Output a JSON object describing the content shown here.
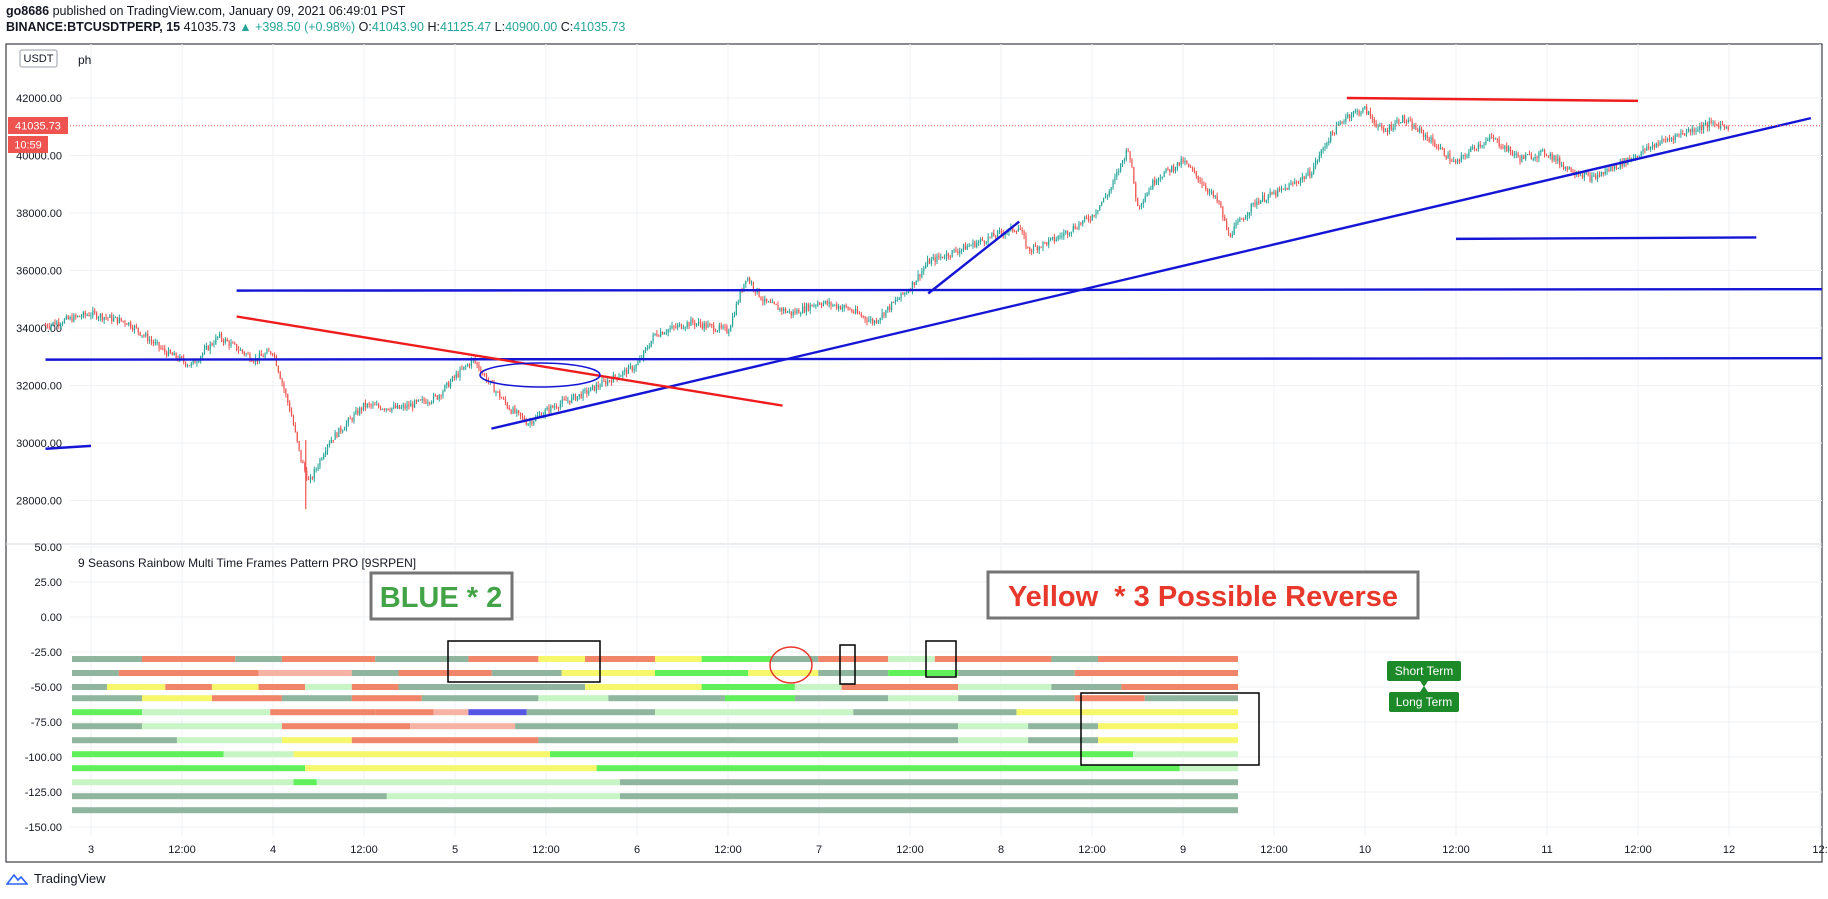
{
  "header": {
    "author": "go8686",
    "published_text": "published on TradingView.com, January 09, 2021 06:49:01 PST",
    "symbol": "BINANCE:BTCUSDTPERP, 15",
    "last": "41035.73",
    "change": "▲ +398.50 (+0.98%)",
    "o_label": "O:",
    "o_value": "41043.90",
    "h_label": "H:",
    "h_value": "41125.47",
    "l_label": "L:",
    "l_value": "40900.00",
    "c_label": "C:",
    "c_value": "41035.73"
  },
  "toolbar": {
    "currency": "USDT",
    "ph": "ph"
  },
  "price_tag": {
    "value": "41035.73",
    "countdown": "10:59"
  },
  "indicator": {
    "title": "9 Seasons Rainbow Multi Time Frames Pattern PRO [9SRPEN]"
  },
  "annotations": {
    "blue_label": "BLUE * 2",
    "yellow_label": "Yellow  * 3 Possible Reverse",
    "short_term": "Short Term",
    "long_term": "Long Term"
  },
  "colors": {
    "up": "#26a69a",
    "down": "#ef5350",
    "blue_line": "#1515d6",
    "red_line": "#ee1c1c",
    "grid": "#eef0f3",
    "axis_text": "#131722",
    "badge_green": "#1d8a2a",
    "blue_label_text": "#43a347",
    "yellow_label_text": "#e8382c"
  },
  "footer": {
    "brand": "TradingView"
  },
  "chart_data": [
    {
      "type": "candlestick",
      "title": "BINANCE:BTCUSDTPERP, 15",
      "price_axis": [
        "42000.00",
        "40000.00",
        "38000.00",
        "36000.00",
        "34000.00",
        "32000.00",
        "30000.00",
        "28000.00"
      ],
      "price_range": [
        27000,
        42700
      ],
      "time_axis": [
        "3",
        "12:00",
        "4",
        "12:00",
        "5",
        "12:00",
        "6",
        "12:00",
        "7",
        "12:00",
        "8",
        "12:00",
        "9",
        "12:00",
        "10",
        "12:00",
        "11",
        "12:00",
        "12",
        "12:"
      ],
      "close_path": [
        [
          2.75,
          34100
        ],
        [
          3.0,
          34500
        ],
        [
          3.2,
          34200
        ],
        [
          3.4,
          33200
        ],
        [
          3.55,
          32700
        ],
        [
          3.7,
          33700
        ],
        [
          3.9,
          32900
        ],
        [
          4.0,
          33200
        ],
        [
          4.1,
          31000
        ],
        [
          4.15,
          29500
        ],
        [
          4.2,
          28600
        ],
        [
          4.3,
          30000
        ],
        [
          4.5,
          31300
        ],
        [
          4.7,
          31200
        ],
        [
          4.9,
          31600
        ],
        [
          5.0,
          32300
        ],
        [
          5.1,
          32900
        ],
        [
          5.2,
          32000
        ],
        [
          5.3,
          31200
        ],
        [
          5.4,
          30700
        ],
        [
          5.55,
          31300
        ],
        [
          5.7,
          31700
        ],
        [
          5.85,
          32200
        ],
        [
          6.0,
          32700
        ],
        [
          6.1,
          33800
        ],
        [
          6.3,
          34200
        ],
        [
          6.5,
          33900
        ],
        [
          6.6,
          35800
        ],
        [
          6.7,
          34900
        ],
        [
          6.85,
          34500
        ],
        [
          7.0,
          34900
        ],
        [
          7.15,
          34700
        ],
        [
          7.3,
          34200
        ],
        [
          7.5,
          35400
        ],
        [
          7.6,
          36300
        ],
        [
          7.8,
          36800
        ],
        [
          8.0,
          37300
        ],
        [
          8.1,
          37500
        ],
        [
          8.15,
          36700
        ],
        [
          8.3,
          37100
        ],
        [
          8.5,
          37900
        ],
        [
          8.6,
          38800
        ],
        [
          8.7,
          40300
        ],
        [
          8.75,
          38200
        ],
        [
          8.85,
          39200
        ],
        [
          9.0,
          39800
        ],
        [
          9.1,
          39100
        ],
        [
          9.2,
          38300
        ],
        [
          9.25,
          37200
        ],
        [
          9.4,
          38400
        ],
        [
          9.55,
          38800
        ],
        [
          9.7,
          39400
        ],
        [
          9.8,
          40600
        ],
        [
          9.9,
          41400
        ],
        [
          10.0,
          41600
        ],
        [
          10.1,
          40800
        ],
        [
          10.2,
          41300
        ],
        [
          10.35,
          40600
        ],
        [
          10.5,
          39700
        ],
        [
          10.6,
          40300
        ],
        [
          10.7,
          40600
        ],
        [
          10.85,
          39900
        ],
        [
          11.0,
          40100
        ],
        [
          11.1,
          39600
        ],
        [
          11.25,
          39200
        ],
        [
          11.4,
          39700
        ],
        [
          11.6,
          40400
        ],
        [
          11.75,
          40800
        ],
        [
          11.9,
          41100
        ],
        [
          12.0,
          41035
        ]
      ],
      "trendlines": [
        {
          "color": "blue",
          "from": [
            3.8,
            35300
          ],
          "to": [
            12.8,
            35350
          ]
        },
        {
          "color": "blue",
          "from": [
            2.75,
            32900
          ],
          "to": [
            13.0,
            32950
          ]
        },
        {
          "color": "blue",
          "from": [
            2.75,
            29800
          ],
          "to": [
            3.0,
            29900
          ]
        },
        {
          "color": "blue",
          "from": [
            5.2,
            30500
          ],
          "to": [
            12.45,
            41300
          ]
        },
        {
          "color": "blue",
          "from": [
            7.6,
            35200
          ],
          "to": [
            8.1,
            37700
          ]
        },
        {
          "color": "blue",
          "from": [
            10.5,
            37100
          ],
          "to": [
            12.15,
            37150
          ]
        },
        {
          "color": "red",
          "from": [
            3.8,
            34400
          ],
          "to": [
            6.8,
            31300
          ]
        },
        {
          "color": "red",
          "from": [
            9.9,
            42000
          ],
          "to": [
            11.5,
            41900
          ]
        }
      ]
    },
    {
      "type": "heatmap",
      "title": "9 Seasons Rainbow Multi Time Frames Pattern PRO [9SRPEN]",
      "y_axis": [
        "50.00",
        "25.00",
        "0.00",
        "-25.00",
        "-50.00",
        "-75.00",
        "-100.00",
        "-125.00",
        "-150.00"
      ],
      "y_range": [
        -158,
        52
      ],
      "rows": [
        {
          "y": -30,
          "segments": [
            [
              "dg",
              0,
              6
            ],
            [
              "red",
              6,
              14
            ],
            [
              "dg",
              14,
              18
            ],
            [
              "red",
              18,
              26
            ],
            [
              "dg",
              26,
              34
            ],
            [
              "red",
              34,
              40
            ],
            [
              "yellow",
              40,
              44
            ],
            [
              "red",
              44,
              50
            ],
            [
              "yellow",
              50,
              54
            ],
            [
              "green",
              54,
              60
            ],
            [
              "dg",
              60,
              64
            ],
            [
              "red",
              64,
              70
            ],
            [
              "lg",
              70,
              74
            ],
            [
              "red",
              74,
              84
            ],
            [
              "dg",
              84,
              88
            ],
            [
              "red",
              88,
              100
            ]
          ]
        },
        {
          "y": -40,
          "segments": [
            [
              "dg",
              0,
              4
            ],
            [
              "red",
              4,
              16
            ],
            [
              "pink",
              16,
              24
            ],
            [
              "dg",
              24,
              28
            ],
            [
              "red",
              28,
              36
            ],
            [
              "dg",
              36,
              42
            ],
            [
              "yellow",
              42,
              50
            ],
            [
              "green",
              50,
              58
            ],
            [
              "yellow",
              58,
              64
            ],
            [
              "dg",
              64,
              70
            ],
            [
              "green",
              70,
              76
            ],
            [
              "dg",
              76,
              86
            ],
            [
              "red",
              86,
              100
            ]
          ]
        },
        {
          "y": -50,
          "segments": [
            [
              "dg",
              0,
              3
            ],
            [
              "yellow",
              3,
              8
            ],
            [
              "red",
              8,
              12
            ],
            [
              "yellow",
              12,
              16
            ],
            [
              "red",
              16,
              20
            ],
            [
              "lg",
              20,
              24
            ],
            [
              "red",
              24,
              28
            ],
            [
              "dg",
              28,
              44
            ],
            [
              "yellow",
              44,
              54
            ],
            [
              "green",
              54,
              62
            ],
            [
              "lg",
              62,
              66
            ],
            [
              "red",
              66,
              76
            ],
            [
              "lg",
              76,
              84
            ],
            [
              "dg",
              84,
              90
            ],
            [
              "red",
              90,
              100
            ]
          ]
        },
        {
          "y": -58,
          "segments": [
            [
              "dg",
              0,
              6
            ],
            [
              "yellow",
              6,
              12
            ],
            [
              "red",
              12,
              18
            ],
            [
              "dg",
              18,
              24
            ],
            [
              "red",
              24,
              30
            ],
            [
              "dg",
              30,
              40
            ],
            [
              "lg",
              40,
              46
            ],
            [
              "dg",
              46,
              56
            ],
            [
              "green",
              56,
              62
            ],
            [
              "dg",
              62,
              70
            ],
            [
              "lg",
              70,
              76
            ],
            [
              "dg",
              76,
              86
            ],
            [
              "red",
              86,
              92
            ],
            [
              "dg",
              92,
              100
            ]
          ]
        },
        {
          "y": -68,
          "segments": [
            [
              "green",
              0,
              6
            ],
            [
              "lg",
              6,
              17
            ],
            [
              "red",
              17,
              26
            ],
            [
              "red",
              26,
              31
            ],
            [
              "pink",
              31,
              34
            ],
            [
              "blue",
              34,
              39
            ],
            [
              "dg",
              39,
              50
            ],
            [
              "lg",
              50,
              67
            ],
            [
              "dg",
              67,
              81
            ],
            [
              "yellow",
              81,
              100
            ]
          ]
        },
        {
          "y": -78,
          "segments": [
            [
              "dg",
              0,
              6
            ],
            [
              "lg",
              6,
              18
            ],
            [
              "red",
              18,
              29
            ],
            [
              "pink",
              29,
              38
            ],
            [
              "dg",
              38,
              76
            ],
            [
              "lg",
              76,
              82
            ],
            [
              "dg",
              82,
              88
            ],
            [
              "yellow",
              88,
              100
            ]
          ]
        },
        {
          "y": -88,
          "segments": [
            [
              "dg",
              0,
              9
            ],
            [
              "lg",
              9,
              18
            ],
            [
              "yellow",
              18,
              24
            ],
            [
              "red",
              24,
              40
            ],
            [
              "dg",
              40,
              76
            ],
            [
              "lg",
              76,
              82
            ],
            [
              "dg",
              82,
              88
            ],
            [
              "yellow",
              88,
              100
            ]
          ]
        },
        {
          "y": -98,
          "segments": [
            [
              "green",
              0,
              13
            ],
            [
              "lg",
              13,
              19
            ],
            [
              "yellow",
              19,
              41
            ],
            [
              "green",
              41,
              91
            ],
            [
              "lg",
              91,
              100
            ]
          ]
        },
        {
          "y": -108,
          "segments": [
            [
              "green",
              0,
              20
            ],
            [
              "yellow",
              20,
              45
            ],
            [
              "green",
              45,
              95
            ],
            [
              "lg",
              95,
              100
            ]
          ]
        },
        {
          "y": -118,
          "segments": [
            [
              "lg",
              0,
              19
            ],
            [
              "green",
              19,
              21
            ],
            [
              "lg",
              21,
              47
            ],
            [
              "dg",
              47,
              100
            ]
          ]
        },
        {
          "y": -128,
          "segments": [
            [
              "dg",
              0,
              27
            ],
            [
              "lg",
              27,
              47
            ],
            [
              "dg",
              47,
              100
            ]
          ]
        },
        {
          "y": -138,
          "segments": [
            [
              "dg",
              0,
              100
            ]
          ]
        }
      ]
    }
  ]
}
